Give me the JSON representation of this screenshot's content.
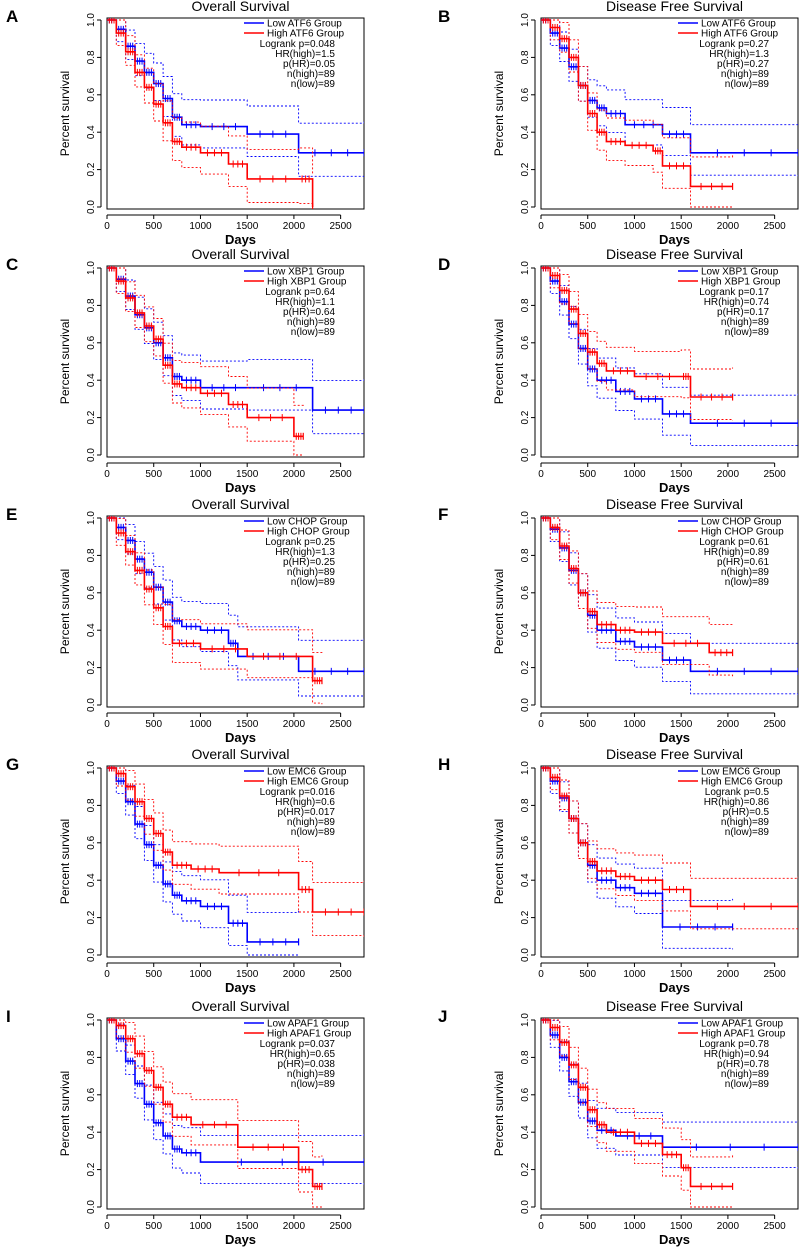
{
  "chart_data": [
    {
      "type": "line",
      "letter": "A",
      "title": "Overall Survival",
      "xlabel": "Days",
      "ylabel": "Percent survival",
      "xlim": [
        0,
        2750
      ],
      "ylim": [
        0,
        1.0
      ],
      "xticks": [
        "0",
        "500",
        "1000",
        "1500",
        "2000",
        "2500"
      ],
      "yticks": [
        "0.0",
        "0.2",
        "0.4",
        "0.6",
        "0.8",
        "1.0"
      ],
      "legend": [
        "Low ATF6 Group",
        "High ATF6 Group"
      ],
      "stats": [
        "Logrank p=0.048",
        "HR(high)=1.5",
        "p(HR)=0.05",
        "n(high)=89",
        "n(low)=89"
      ],
      "colors": {
        "low": "#0000ff",
        "high": "#ff0000"
      },
      "series": [
        {
          "name": "Low ATF6 Group",
          "x": [
            0,
            100,
            200,
            300,
            400,
            500,
            600,
            700,
            800,
            1000,
            1500,
            2050,
            2750
          ],
          "y": [
            1.0,
            0.95,
            0.86,
            0.78,
            0.72,
            0.66,
            0.58,
            0.48,
            0.44,
            0.43,
            0.39,
            0.29,
            0.29
          ]
        },
        {
          "name": "High ATF6 Group",
          "x": [
            0,
            100,
            200,
            300,
            400,
            500,
            600,
            700,
            800,
            1000,
            1300,
            1500,
            2050,
            2200
          ],
          "y": [
            1.0,
            0.93,
            0.83,
            0.72,
            0.64,
            0.55,
            0.45,
            0.35,
            0.32,
            0.29,
            0.23,
            0.15,
            0.15,
            0.0
          ]
        }
      ]
    },
    {
      "type": "line",
      "letter": "B",
      "title": "Disease Free Survival",
      "xlabel": "Days",
      "ylabel": "Percent survival",
      "xlim": [
        0,
        2750
      ],
      "ylim": [
        0,
        1.0
      ],
      "xticks": [
        "0",
        "500",
        "1000",
        "1500",
        "2000",
        "2500"
      ],
      "yticks": [
        "0.0",
        "0.2",
        "0.4",
        "0.6",
        "0.8",
        "1.0"
      ],
      "legend": [
        "Low ATF6 Group",
        "High ATF6 Group"
      ],
      "stats": [
        "Logrank p=0.27",
        "HR(high)=1.3",
        "p(HR)=0.27",
        "n(high)=89",
        "n(low)=89"
      ],
      "colors": {
        "low": "#0000ff",
        "high": "#ff0000"
      },
      "series": [
        {
          "name": "Low ATF6 Group",
          "x": [
            0,
            100,
            200,
            300,
            400,
            500,
            600,
            700,
            900,
            1300,
            1600,
            2750
          ],
          "y": [
            1.0,
            0.93,
            0.85,
            0.75,
            0.65,
            0.57,
            0.53,
            0.5,
            0.44,
            0.39,
            0.29,
            0.29
          ]
        },
        {
          "name": "High ATF6 Group",
          "x": [
            0,
            100,
            200,
            300,
            400,
            500,
            600,
            700,
            900,
            1200,
            1300,
            1600,
            2050
          ],
          "y": [
            1.0,
            0.96,
            0.9,
            0.8,
            0.65,
            0.5,
            0.4,
            0.35,
            0.33,
            0.3,
            0.22,
            0.11,
            0.11
          ]
        }
      ]
    },
    {
      "type": "line",
      "letter": "C",
      "title": "Overall Survival",
      "xlabel": "Days",
      "ylabel": "Percent survival",
      "xlim": [
        0,
        2750
      ],
      "ylim": [
        0,
        1.0
      ],
      "xticks": [
        "0",
        "500",
        "1000",
        "1500",
        "2000",
        "2500"
      ],
      "yticks": [
        "0.0",
        "0.2",
        "0.4",
        "0.6",
        "0.8",
        "1.0"
      ],
      "legend": [
        "Low XBP1 Group",
        "High XBP1 Group"
      ],
      "stats": [
        "Logrank p=0.64",
        "HR(high)=1.1",
        "p(HR)=0.64",
        "n(high)=89",
        "n(low)=89"
      ],
      "colors": {
        "low": "#0000ff",
        "high": "#ff0000"
      },
      "series": [
        {
          "name": "Low XBP1 Group",
          "x": [
            0,
            100,
            200,
            300,
            400,
            500,
            600,
            700,
            800,
            1000,
            1500,
            2200,
            2750
          ],
          "y": [
            1.0,
            0.94,
            0.85,
            0.75,
            0.68,
            0.6,
            0.52,
            0.42,
            0.4,
            0.36,
            0.36,
            0.24,
            0.24
          ]
        },
        {
          "name": "High XBP1 Group",
          "x": [
            0,
            100,
            200,
            300,
            400,
            500,
            600,
            700,
            800,
            1000,
            1300,
            1500,
            2000,
            2100
          ],
          "y": [
            1.0,
            0.93,
            0.84,
            0.76,
            0.69,
            0.62,
            0.48,
            0.38,
            0.36,
            0.33,
            0.27,
            0.2,
            0.1,
            0.1
          ]
        }
      ]
    },
    {
      "type": "line",
      "letter": "D",
      "title": "Disease Free Survival",
      "xlabel": "Days",
      "ylabel": "Percent survival",
      "xlim": [
        0,
        2750
      ],
      "ylim": [
        0,
        1.0
      ],
      "xticks": [
        "0",
        "500",
        "1000",
        "1500",
        "2000",
        "2500"
      ],
      "yticks": [
        "0.0",
        "0.2",
        "0.4",
        "0.6",
        "0.8",
        "1.0"
      ],
      "legend": [
        "Low XBP1 Group",
        "High XBP1 Group"
      ],
      "stats": [
        "Logrank p=0.17",
        "HR(high)=0.74",
        "p(HR)=0.17",
        "n(high)=89",
        "n(low)=89"
      ],
      "colors": {
        "low": "#0000ff",
        "high": "#ff0000"
      },
      "series": [
        {
          "name": "Low XBP1 Group",
          "x": [
            0,
            100,
            200,
            300,
            400,
            500,
            600,
            800,
            1000,
            1300,
            1600,
            2750
          ],
          "y": [
            1.0,
            0.93,
            0.82,
            0.7,
            0.57,
            0.46,
            0.4,
            0.34,
            0.3,
            0.22,
            0.17,
            0.17
          ]
        },
        {
          "name": "High XBP1 Group",
          "x": [
            0,
            100,
            200,
            300,
            400,
            500,
            600,
            700,
            1000,
            1500,
            1600,
            2050
          ],
          "y": [
            1.0,
            0.96,
            0.88,
            0.78,
            0.65,
            0.55,
            0.49,
            0.45,
            0.42,
            0.42,
            0.31,
            0.31
          ]
        }
      ]
    },
    {
      "type": "line",
      "letter": "E",
      "title": "Overall Survival",
      "xlabel": "Days",
      "ylabel": "Percent survival",
      "xlim": [
        0,
        2750
      ],
      "ylim": [
        0,
        1.0
      ],
      "xticks": [
        "0",
        "500",
        "1000",
        "1500",
        "2000",
        "2500"
      ],
      "yticks": [
        "0.0",
        "0.2",
        "0.4",
        "0.6",
        "0.8",
        "1.0"
      ],
      "legend": [
        "Low CHOP Group",
        "High CHOP Group"
      ],
      "stats": [
        "Logrank p=0.25",
        "HR(high)=1.3",
        "p(HR)=0.25",
        "n(high)=89",
        "n(low)=89"
      ],
      "colors": {
        "low": "#0000ff",
        "high": "#ff0000"
      },
      "series": [
        {
          "name": "Low CHOP Group",
          "x": [
            0,
            100,
            200,
            300,
            400,
            500,
            600,
            700,
            800,
            1000,
            1300,
            1400,
            2050,
            2750
          ],
          "y": [
            1.0,
            0.95,
            0.88,
            0.78,
            0.71,
            0.63,
            0.55,
            0.45,
            0.42,
            0.4,
            0.33,
            0.26,
            0.18,
            0.18
          ]
        },
        {
          "name": "High CHOP Group",
          "x": [
            0,
            100,
            200,
            300,
            400,
            500,
            600,
            700,
            1000,
            1500,
            2200,
            2300
          ],
          "y": [
            1.0,
            0.92,
            0.82,
            0.72,
            0.62,
            0.52,
            0.42,
            0.33,
            0.3,
            0.26,
            0.13,
            0.13
          ]
        }
      ]
    },
    {
      "type": "line",
      "letter": "F",
      "title": "Disease Free Survival",
      "xlabel": "Days",
      "ylabel": "Percent survival",
      "xlim": [
        0,
        2750
      ],
      "ylim": [
        0,
        1.0
      ],
      "xticks": [
        "0",
        "500",
        "1000",
        "1500",
        "2000",
        "2500"
      ],
      "yticks": [
        "0.0",
        "0.2",
        "0.4",
        "0.6",
        "0.8",
        "1.0"
      ],
      "legend": [
        "Low CHOP Group",
        "High CHOP Group"
      ],
      "stats": [
        "Logrank p=0.61",
        "HR(high)=0.89",
        "p(HR)=0.61",
        "n(high)=89",
        "n(low)=89"
      ],
      "colors": {
        "low": "#0000ff",
        "high": "#ff0000"
      },
      "series": [
        {
          "name": "Low CHOP Group",
          "x": [
            0,
            100,
            200,
            300,
            400,
            500,
            600,
            800,
            1000,
            1300,
            1600,
            2750
          ],
          "y": [
            1.0,
            0.94,
            0.84,
            0.72,
            0.6,
            0.48,
            0.4,
            0.34,
            0.31,
            0.24,
            0.18,
            0.18
          ]
        },
        {
          "name": "High CHOP Group",
          "x": [
            0,
            100,
            200,
            300,
            400,
            500,
            600,
            800,
            1000,
            1300,
            1800,
            2050
          ],
          "y": [
            1.0,
            0.95,
            0.85,
            0.73,
            0.6,
            0.5,
            0.43,
            0.4,
            0.39,
            0.33,
            0.28,
            0.28
          ]
        }
      ]
    },
    {
      "type": "line",
      "letter": "G",
      "title": "Overall Survival",
      "xlabel": "Days",
      "ylabel": "Percent survival",
      "xlim": [
        0,
        2750
      ],
      "ylim": [
        0,
        1.0
      ],
      "xticks": [
        "0",
        "500",
        "1000",
        "1500",
        "2000",
        "2500"
      ],
      "yticks": [
        "0.0",
        "0.2",
        "0.4",
        "0.6",
        "0.8",
        "1.0"
      ],
      "legend": [
        "Low EMC6 Group",
        "High EMC6 Group"
      ],
      "stats": [
        "Logrank p=0.016",
        "HR(high)=0.6",
        "p(HR)=0.017",
        "n(high)=89",
        "n(low)=89"
      ],
      "colors": {
        "low": "#0000ff",
        "high": "#ff0000"
      },
      "series": [
        {
          "name": "Low EMC6 Group",
          "x": [
            0,
            100,
            200,
            300,
            400,
            500,
            600,
            700,
            800,
            1000,
            1300,
            1500,
            2050
          ],
          "y": [
            1.0,
            0.93,
            0.82,
            0.7,
            0.59,
            0.48,
            0.38,
            0.32,
            0.29,
            0.26,
            0.17,
            0.07,
            0.07
          ]
        },
        {
          "name": "High EMC6 Group",
          "x": [
            0,
            100,
            200,
            300,
            400,
            500,
            600,
            700,
            900,
            1200,
            2050,
            2200,
            2750
          ],
          "y": [
            1.0,
            0.97,
            0.9,
            0.82,
            0.73,
            0.65,
            0.55,
            0.48,
            0.46,
            0.44,
            0.35,
            0.23,
            0.23
          ]
        }
      ]
    },
    {
      "type": "line",
      "letter": "H",
      "title": "Disease Free Survival",
      "xlabel": "Days",
      "ylabel": "Percent survival",
      "xlim": [
        0,
        2750
      ],
      "ylim": [
        0,
        1.0
      ],
      "xticks": [
        "0",
        "500",
        "1000",
        "1500",
        "2000",
        "2500"
      ],
      "yticks": [
        "0.0",
        "0.2",
        "0.4",
        "0.6",
        "0.8",
        "1.0"
      ],
      "legend": [
        "Low EMC6 Group",
        "High EMC6 Group"
      ],
      "stats": [
        "Logrank p=0.5",
        "HR(high)=0.86",
        "p(HR)=0.5",
        "n(high)=89",
        "n(low)=89"
      ],
      "colors": {
        "low": "#0000ff",
        "high": "#ff0000"
      },
      "series": [
        {
          "name": "Low EMC6 Group",
          "x": [
            0,
            100,
            200,
            300,
            400,
            500,
            600,
            800,
            1000,
            1300,
            2050
          ],
          "y": [
            1.0,
            0.93,
            0.84,
            0.73,
            0.6,
            0.48,
            0.4,
            0.36,
            0.33,
            0.15,
            0.15
          ]
        },
        {
          "name": "High EMC6 Group",
          "x": [
            0,
            100,
            200,
            300,
            400,
            500,
            600,
            800,
            1000,
            1300,
            1600,
            2750
          ],
          "y": [
            1.0,
            0.95,
            0.85,
            0.73,
            0.6,
            0.5,
            0.45,
            0.42,
            0.4,
            0.35,
            0.26,
            0.26
          ]
        }
      ]
    },
    {
      "type": "line",
      "letter": "I",
      "title": "Overall Survival",
      "xlabel": "Days",
      "ylabel": "Percent survival",
      "xlim": [
        0,
        2750
      ],
      "ylim": [
        0,
        1.0
      ],
      "xticks": [
        "0",
        "500",
        "1000",
        "1500",
        "2000",
        "2500"
      ],
      "yticks": [
        "0.0",
        "0.2",
        "0.4",
        "0.6",
        "0.8",
        "1.0"
      ],
      "legend": [
        "Low APAF1 Group",
        "High APAF1 Group"
      ],
      "stats": [
        "Logrank p=0.037",
        "HR(high)=0.65",
        "p(HR)=0.038",
        "n(high)=89",
        "n(low)=89"
      ],
      "colors": {
        "low": "#0000ff",
        "high": "#ff0000"
      },
      "series": [
        {
          "name": "Low APAF1 Group",
          "x": [
            0,
            100,
            200,
            300,
            400,
            500,
            600,
            700,
            800,
            1000,
            2750
          ],
          "y": [
            1.0,
            0.9,
            0.78,
            0.66,
            0.55,
            0.45,
            0.38,
            0.31,
            0.29,
            0.24,
            0.24
          ]
        },
        {
          "name": "High APAF1 Group",
          "x": [
            0,
            100,
            200,
            300,
            400,
            500,
            600,
            700,
            900,
            1400,
            2050,
            2200,
            2300
          ],
          "y": [
            1.0,
            0.97,
            0.9,
            0.82,
            0.73,
            0.64,
            0.55,
            0.48,
            0.44,
            0.32,
            0.2,
            0.11,
            0.11
          ]
        }
      ]
    },
    {
      "type": "line",
      "letter": "J",
      "title": "Disease Free Survival",
      "xlabel": "Days",
      "ylabel": "Percent survival",
      "xlim": [
        0,
        2750
      ],
      "ylim": [
        0,
        1.0
      ],
      "xticks": [
        "0",
        "500",
        "1000",
        "1500",
        "2000",
        "2500"
      ],
      "yticks": [
        "0.0",
        "0.2",
        "0.4",
        "0.6",
        "0.8",
        "1.0"
      ],
      "legend": [
        "Low APAF1 Group",
        "High APAF1 Group"
      ],
      "stats": [
        "Logrank p=0.78",
        "HR(high)=0.94",
        "p(HR)=0.78",
        "n(high)=89",
        "n(low)=89"
      ],
      "colors": {
        "low": "#0000ff",
        "high": "#ff0000"
      },
      "series": [
        {
          "name": "Low APAF1 Group",
          "x": [
            0,
            100,
            200,
            300,
            400,
            500,
            600,
            800,
            1300,
            2750
          ],
          "y": [
            1.0,
            0.92,
            0.8,
            0.67,
            0.56,
            0.46,
            0.41,
            0.38,
            0.32,
            0.32
          ]
        },
        {
          "name": "High APAF1 Group",
          "x": [
            0,
            100,
            200,
            300,
            400,
            500,
            600,
            700,
            1000,
            1300,
            1500,
            1600,
            2050
          ],
          "y": [
            1.0,
            0.96,
            0.88,
            0.76,
            0.64,
            0.52,
            0.44,
            0.4,
            0.34,
            0.28,
            0.21,
            0.11,
            0.11
          ]
        }
      ]
    }
  ]
}
